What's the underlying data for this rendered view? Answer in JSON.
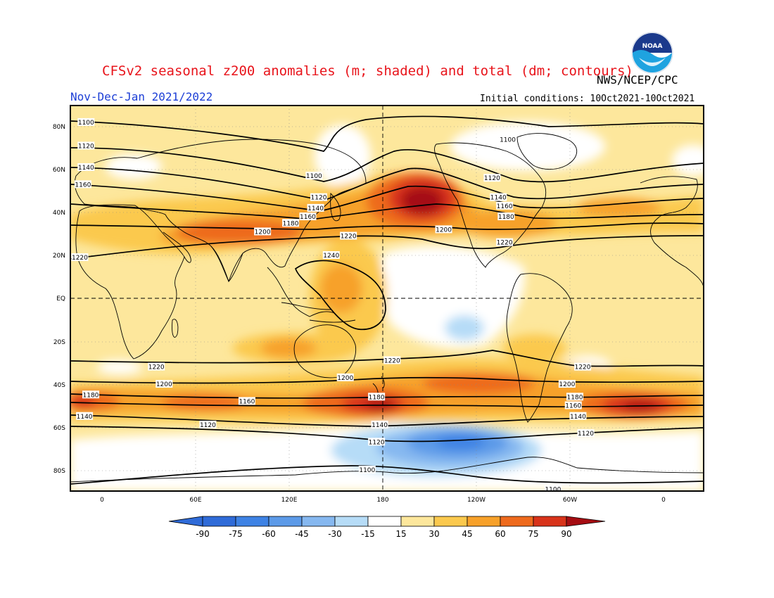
{
  "header": {
    "title": "CFSv2 seasonal z200 anomalies (m; shaded) and total (dm; contours)",
    "agency": "NWS/NCEP/CPC",
    "period": "Nov-Dec-Jan 2021/2022",
    "initial_conditions": "Initial conditions: 10Oct2021-10Oct2021",
    "logo_text": "NOAA",
    "logo_icon": "noaa-logo-icon"
  },
  "map": {
    "lat_labels": [
      "80N",
      "60N",
      "40N",
      "20N",
      "EQ",
      "20S",
      "40S",
      "60S",
      "80S"
    ],
    "lon_labels": [
      "0",
      "60E",
      "120E",
      "180",
      "120W",
      "60W",
      "0"
    ],
    "contour_labels": [
      {
        "text": "1100",
        "lon": -10,
        "lat": 82
      },
      {
        "text": "1120",
        "lon": -10,
        "lat": 71
      },
      {
        "text": "1140",
        "lon": -10,
        "lat": 61
      },
      {
        "text": "1160",
        "lon": -12,
        "lat": 53
      },
      {
        "text": "1220",
        "lon": -14,
        "lat": 19
      },
      {
        "text": "1100",
        "lon": 136,
        "lat": 57
      },
      {
        "text": "1120",
        "lon": 139,
        "lat": 47
      },
      {
        "text": "1140",
        "lon": 137,
        "lat": 42
      },
      {
        "text": "1160",
        "lon": 132,
        "lat": 38
      },
      {
        "text": "1180",
        "lon": 121,
        "lat": 35
      },
      {
        "text": "1200",
        "lon": 103,
        "lat": 31
      },
      {
        "text": "1220",
        "lon": 158,
        "lat": 29
      },
      {
        "text": "1240",
        "lon": 147,
        "lat": 20
      },
      {
        "text": "1100",
        "lon": -100,
        "lat": 74
      },
      {
        "text": "1120",
        "lon": -110,
        "lat": 56
      },
      {
        "text": "1140",
        "lon": -106,
        "lat": 47
      },
      {
        "text": "1160",
        "lon": -102,
        "lat": 43
      },
      {
        "text": "1180",
        "lon": -101,
        "lat": 38
      },
      {
        "text": "1200",
        "lon": -141,
        "lat": 32
      },
      {
        "text": "1220",
        "lon": -102,
        "lat": 26
      },
      {
        "text": "1220",
        "lon": 35,
        "lat": -32
      },
      {
        "text": "1200",
        "lon": 40,
        "lat": -40
      },
      {
        "text": "1180",
        "lon": -7,
        "lat": -45
      },
      {
        "text": "1160",
        "lon": 93,
        "lat": -48
      },
      {
        "text": "1140",
        "lon": -11,
        "lat": -55
      },
      {
        "text": "1120",
        "lon": 68,
        "lat": -59
      },
      {
        "text": "1220",
        "lon": 186,
        "lat": -29
      },
      {
        "text": "1200",
        "lon": 156,
        "lat": -37
      },
      {
        "text": "1180",
        "lon": 176,
        "lat": -46
      },
      {
        "text": "1140",
        "lon": 178,
        "lat": -59
      },
      {
        "text": "1120",
        "lon": 176,
        "lat": -67
      },
      {
        "text": "1100",
        "lon": 170,
        "lat": -80
      },
      {
        "text": "1220",
        "lon": -52,
        "lat": -32
      },
      {
        "text": "1200",
        "lon": -62,
        "lat": -40
      },
      {
        "text": "1180",
        "lon": -57,
        "lat": -46
      },
      {
        "text": "1160",
        "lon": -58,
        "lat": -50
      },
      {
        "text": "1140",
        "lon": -55,
        "lat": -55
      },
      {
        "text": "1120",
        "lon": -50,
        "lat": -63
      },
      {
        "text": "1100",
        "lon": -71,
        "lat": -89
      }
    ]
  },
  "colorbar": {
    "labels": [
      "-90",
      "-75",
      "-60",
      "-45",
      "-30",
      "-15",
      "15",
      "30",
      "45",
      "60",
      "75",
      "90"
    ],
    "colors": [
      "#2f6bd8",
      "#3e82e4",
      "#5c9ae8",
      "#86b8f0",
      "#b6dcf7",
      "#ffffff",
      "#fde79c",
      "#fbc94e",
      "#f7a12a",
      "#ee6a1d",
      "#d8331a",
      "#a50d12"
    ]
  },
  "shading_colors": {
    "neg75": "#3e82e4",
    "neg60": "#5c9ae8",
    "neg45": "#86b8f0",
    "neg30": "#b6dcf7",
    "neutral": "#ffffff",
    "pos15": "#fde79c",
    "pos30": "#fbc94e",
    "pos45": "#f7a12a",
    "pos60": "#ee6a1d",
    "pos75": "#d8331a",
    "pos90": "#a50d12"
  }
}
